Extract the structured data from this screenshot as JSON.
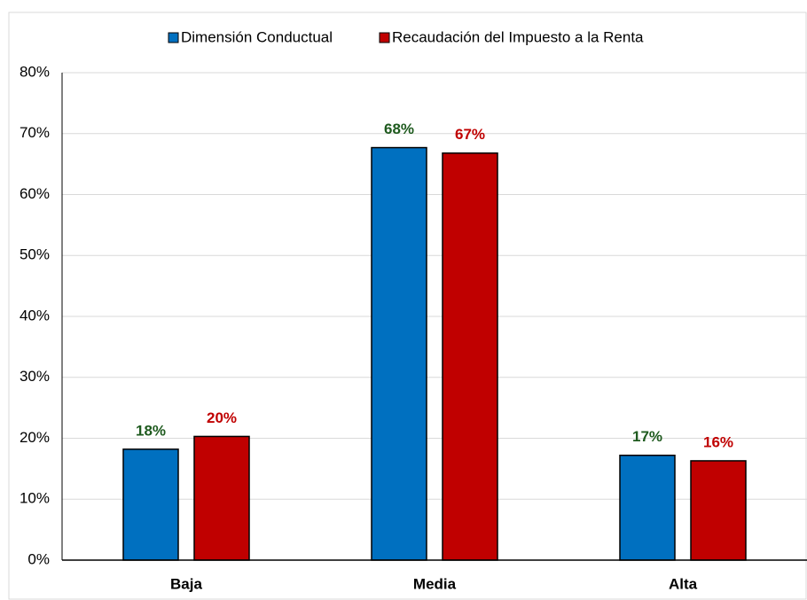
{
  "chart_data": {
    "type": "bar",
    "categories": [
      "Baja",
      "Media",
      "Alta"
    ],
    "series": [
      {
        "name": "Dimensión Conductual",
        "color": "#0070c0",
        "label_color": "#1e5a1e",
        "values": [
          18.2,
          67.7,
          17.2
        ],
        "value_labels": [
          "18%",
          "68%",
          "17%"
        ]
      },
      {
        "name": "Recaudación del Impuesto a la Renta",
        "color": "#c00000",
        "label_color": "#c00000",
        "values": [
          20.3,
          66.8,
          16.3
        ],
        "value_labels": [
          "20%",
          "67%",
          "16%"
        ]
      }
    ],
    "ylim": [
      0,
      80
    ],
    "yticks": [
      {
        "value": 0,
        "label": "0%"
      },
      {
        "value": 10,
        "label": "10%"
      },
      {
        "value": 20,
        "label": "20%"
      },
      {
        "value": 30,
        "label": "30%"
      },
      {
        "value": 40,
        "label": "40%"
      },
      {
        "value": 50,
        "label": "50%"
      },
      {
        "value": 60,
        "label": "60%"
      },
      {
        "value": 70,
        "label": "70%"
      },
      {
        "value": 80,
        "label": "80%"
      }
    ],
    "grid": true,
    "legend": "top"
  }
}
